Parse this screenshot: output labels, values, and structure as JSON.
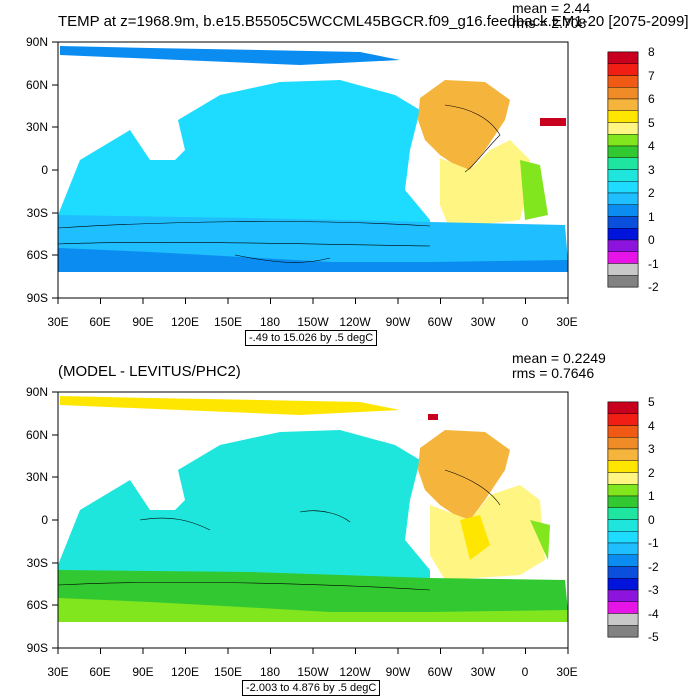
{
  "panels": [
    {
      "title": "TEMP at z=1968.9m, b.e15.B5505C5WCCML45BGCR.f09_g16.feedback.EM1-20 [2075-2099]",
      "mean_label": "mean = 2.44",
      "rms_label": "rms = 2.708",
      "range_label": "-.49 to 15.026 by .5 degC",
      "lat_ticks": [
        "90N",
        "60N",
        "30N",
        "0",
        "30S",
        "60S",
        "90S"
      ],
      "lon_ticks": [
        "30E",
        "60E",
        "90E",
        "120E",
        "150E",
        "180",
        "150W",
        "120W",
        "90W",
        "60W",
        "30W",
        "0",
        "30E"
      ],
      "colorbar_labels": [
        "8",
        "7",
        "6",
        "5",
        "4",
        "3",
        "2",
        "1",
        "0",
        "-1",
        "-2"
      ],
      "colorbar_colors": [
        "#c8001e",
        "#f01e14",
        "#f05a14",
        "#f08c28",
        "#f5b43c",
        "#ffe600",
        "#fff582",
        "#82e61e",
        "#32c832",
        "#1ee6a0",
        "#1ee6dc",
        "#1edcff",
        "#1ebeff",
        "#0a8cf0",
        "#0a50dc",
        "#0014dc",
        "#8c14dc",
        "#e614e6",
        "#c8c8c8",
        "#828282"
      ],
      "regions": [
        {
          "name": "pacific-indian",
          "color": "#1edcff"
        },
        {
          "name": "north-atlantic",
          "color": "#f5b43c"
        },
        {
          "name": "atlantic",
          "color": "#fff582"
        },
        {
          "name": "southern-band",
          "color": "#1ebeff"
        },
        {
          "name": "antarctic-slope",
          "color": "#0a8cf0"
        },
        {
          "name": "arctic",
          "color": "#0a8cf0"
        },
        {
          "name": "mediterranean",
          "color": "#c8001e"
        }
      ]
    },
    {
      "title": "(MODEL - LEVITUS/PHC2)",
      "mean_label": "mean = 0.2249",
      "rms_label": "rms = 0.7646",
      "range_label": "-2.003 to 4.876 by .5 degC",
      "lat_ticks": [
        "90N",
        "60N",
        "30N",
        "0",
        "30S",
        "60S",
        "90S"
      ],
      "lon_ticks": [
        "30E",
        "60E",
        "90E",
        "120E",
        "150E",
        "180",
        "150W",
        "120W",
        "90W",
        "60W",
        "30W",
        "0",
        "30E"
      ],
      "colorbar_labels": [
        "5",
        "4",
        "3",
        "2",
        "1",
        "0",
        "-1",
        "-2",
        "-3",
        "-4",
        "-5"
      ],
      "colorbar_colors": [
        "#c8001e",
        "#f01e14",
        "#f05a14",
        "#f08c28",
        "#f5b43c",
        "#ffe600",
        "#fff582",
        "#82e61e",
        "#32c832",
        "#1ee6a0",
        "#1ee6dc",
        "#1edcff",
        "#1ebeff",
        "#0a8cf0",
        "#0a50dc",
        "#0014dc",
        "#8c14dc",
        "#e614e6",
        "#c8c8c8",
        "#828282"
      ],
      "regions": [
        {
          "name": "pacific-indian",
          "color": "#1ee6dc"
        },
        {
          "name": "north-atlantic",
          "color": "#f5b43c"
        },
        {
          "name": "atlantic",
          "color": "#fff582"
        },
        {
          "name": "southern-band",
          "color": "#32c832"
        },
        {
          "name": "antarctic-slope",
          "color": "#82e61e"
        },
        {
          "name": "arctic",
          "color": "#ffe600"
        },
        {
          "name": "mediterranean",
          "color": "#c8001e"
        }
      ]
    }
  ]
}
